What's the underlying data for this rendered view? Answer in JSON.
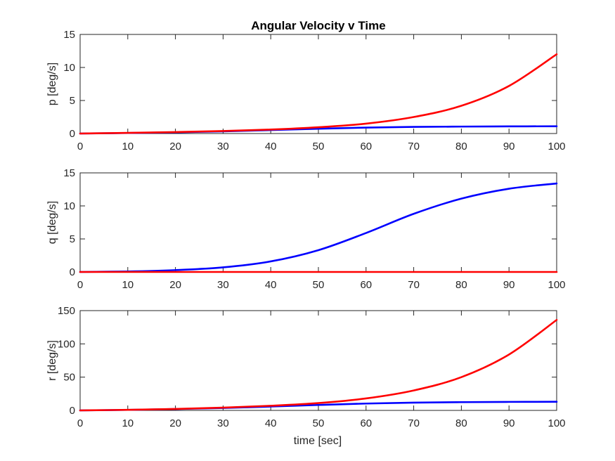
{
  "figure": {
    "title": "Angular Velocity v Time",
    "xlabel": "time [sec]"
  },
  "colors": {
    "blue": "#0000ff",
    "red": "#ff0000",
    "axes": "#262626"
  },
  "chart_data": [
    {
      "type": "line",
      "title": "Angular Velocity v Time",
      "xlabel": "",
      "ylabel": "p [deg/s]",
      "xlim": [
        0,
        100
      ],
      "ylim": [
        0,
        15
      ],
      "xticks": [
        0,
        10,
        20,
        30,
        40,
        50,
        60,
        70,
        80,
        90,
        100
      ],
      "yticks": [
        0,
        5,
        10,
        15
      ],
      "grid": false,
      "x": [
        0,
        10,
        20,
        30,
        40,
        50,
        60,
        70,
        80,
        90,
        100
      ],
      "series": [
        {
          "color": "#0000ff",
          "values": [
            0.0,
            0.08,
            0.18,
            0.33,
            0.52,
            0.73,
            0.9,
            1.0,
            1.05,
            1.08,
            1.1
          ]
        },
        {
          "color": "#ff0000",
          "values": [
            0.0,
            0.1,
            0.22,
            0.38,
            0.6,
            0.95,
            1.5,
            2.5,
            4.2,
            7.2,
            12.0
          ]
        }
      ]
    },
    {
      "type": "line",
      "title": "",
      "xlabel": "",
      "ylabel": "q [deg/s]",
      "xlim": [
        0,
        100
      ],
      "ylim": [
        0,
        15
      ],
      "xticks": [
        0,
        10,
        20,
        30,
        40,
        50,
        60,
        70,
        80,
        90,
        100
      ],
      "yticks": [
        0,
        5,
        10,
        15
      ],
      "grid": false,
      "x": [
        0,
        10,
        20,
        30,
        40,
        50,
        60,
        70,
        80,
        90,
        100
      ],
      "series": [
        {
          "color": "#0000ff",
          "values": [
            0.0,
            0.08,
            0.28,
            0.7,
            1.6,
            3.3,
            5.9,
            8.8,
            11.1,
            12.6,
            13.4
          ]
        },
        {
          "color": "#ff0000",
          "values": [
            0.0,
            0.0,
            0.0,
            0.0,
            0.0,
            0.0,
            0.0,
            0.0,
            0.0,
            0.0,
            0.0
          ]
        }
      ]
    },
    {
      "type": "line",
      "title": "",
      "xlabel": "time [sec]",
      "ylabel": "r [deg/s]",
      "xlim": [
        0,
        100
      ],
      "ylim": [
        0,
        150
      ],
      "xticks": [
        0,
        10,
        20,
        30,
        40,
        50,
        60,
        70,
        80,
        90,
        100
      ],
      "yticks": [
        0,
        50,
        100,
        150
      ],
      "grid": false,
      "x": [
        0,
        10,
        20,
        30,
        40,
        50,
        60,
        70,
        80,
        90,
        100
      ],
      "series": [
        {
          "color": "#0000ff",
          "values": [
            0.0,
            0.8,
            2.0,
            3.6,
            5.8,
            8.2,
            10.3,
            11.7,
            12.4,
            12.8,
            13.0
          ]
        },
        {
          "color": "#ff0000",
          "values": [
            0.0,
            0.9,
            2.2,
            4.2,
            7.0,
            11.0,
            18.0,
            30.0,
            50.0,
            84.0,
            136.0
          ]
        }
      ]
    }
  ]
}
